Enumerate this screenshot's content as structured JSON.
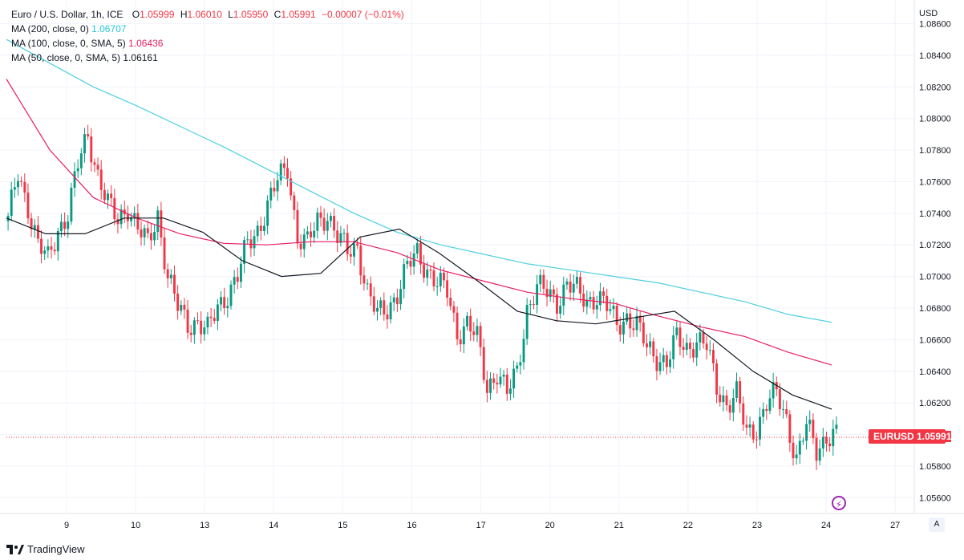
{
  "legend": {
    "symbol": "Euro / U.S. Dollar, 1h, ICE",
    "open_label": "O",
    "open": "1.05999",
    "high_label": "H",
    "high": "1.06010",
    "low_label": "L",
    "low": "1.05950",
    "close_label": "C",
    "close": "1.05991",
    "change": "−0.00007 (−0.01%)",
    "ma200_label": "MA (200, close, 0)",
    "ma200_value": "1.06707",
    "ma100_label": "MA (100, close, 0, SMA, 5)",
    "ma100_value": "1.06436",
    "ma50_label": "MA (50, close, 0, SMA, 5)",
    "ma50_value": "1.06161"
  },
  "price_tag": {
    "symbol": "EURUSD",
    "value": "1.05991"
  },
  "axis_button": "A",
  "branding": "TradingView",
  "colors": {
    "up": "#089981",
    "down": "#f23645",
    "ma200": "#4dd0e1",
    "ma100": "#e91e63",
    "ma50": "#131722"
  },
  "chart_data": {
    "type": "candlestick",
    "currency": "USD",
    "y_ticks": [
      "1.05600",
      "1.05800",
      "1.06000",
      "1.06200",
      "1.06400",
      "1.06600",
      "1.06800",
      "1.07000",
      "1.07200",
      "1.07400",
      "1.07600",
      "1.07800",
      "1.08000",
      "1.08200",
      "1.08400",
      "1.08600"
    ],
    "ylim": [
      1.055,
      1.0875
    ],
    "x_ticks": [
      "9",
      "10",
      "13",
      "14",
      "15",
      "16",
      "17",
      "20",
      "21",
      "22",
      "23",
      "24",
      "27"
    ],
    "close_path": [
      1.0735,
      1.0765,
      1.0745,
      1.072,
      1.071,
      1.073,
      1.074,
      1.077,
      1.079,
      1.0765,
      1.0745,
      1.0735,
      1.0745,
      1.073,
      1.072,
      1.074,
      1.07,
      1.068,
      1.067,
      1.0672,
      1.0665,
      1.068,
      1.069,
      1.07,
      1.072,
      1.073,
      1.0745,
      1.076,
      1.077,
      1.0725,
      1.072,
      1.0735,
      1.074,
      1.0725,
      1.0715,
      1.072,
      1.069,
      1.0675,
      1.068,
      1.069,
      1.0705,
      1.0715,
      1.0705,
      1.0695,
      1.069,
      1.0665,
      1.067,
      1.066,
      1.063,
      1.064,
      1.0625,
      1.064,
      1.068,
      1.0692,
      1.069,
      1.0685,
      1.0695,
      1.069,
      1.0685,
      1.0688,
      1.068,
      1.067,
      1.0675,
      1.0668,
      1.0655,
      1.065,
      1.0645,
      1.066,
      1.0655,
      1.066,
      1.0655,
      1.063,
      1.062,
      1.0625,
      1.06,
      1.0605,
      1.062,
      1.0625,
      1.061,
      1.0585,
      1.0605,
      1.059,
      1.06,
      1.0599
    ],
    "series": [
      {
        "name": "MA (200, close, 0)",
        "values": [
          1.085,
          1.0835,
          1.082,
          1.0808,
          1.0795,
          1.0782,
          1.0768,
          1.0754,
          1.074,
          1.0728,
          1.072,
          1.0714,
          1.0708,
          1.0704,
          1.07,
          1.0696,
          1.069,
          1.0684,
          1.0676,
          1.0671
        ]
      },
      {
        "name": "MA (100, close, 0, SMA, 5)",
        "values": [
          1.0825,
          1.078,
          1.075,
          1.0737,
          1.0727,
          1.0721,
          1.072,
          1.0722,
          1.0722,
          1.0715,
          1.0704,
          1.0697,
          1.069,
          1.0686,
          1.0683,
          1.0675,
          1.0668,
          1.0662,
          1.0652,
          1.0644
        ]
      },
      {
        "name": "MA (50, close, 0, SMA, 5)",
        "values": [
          1.0737,
          1.0727,
          1.0727,
          1.0737,
          1.0737,
          1.0728,
          1.071,
          1.07,
          1.0702,
          1.0725,
          1.073,
          1.0715,
          1.0697,
          1.0678,
          1.0672,
          1.067,
          1.0674,
          1.0678,
          1.066,
          1.064,
          1.0625,
          1.0616
        ]
      }
    ]
  }
}
